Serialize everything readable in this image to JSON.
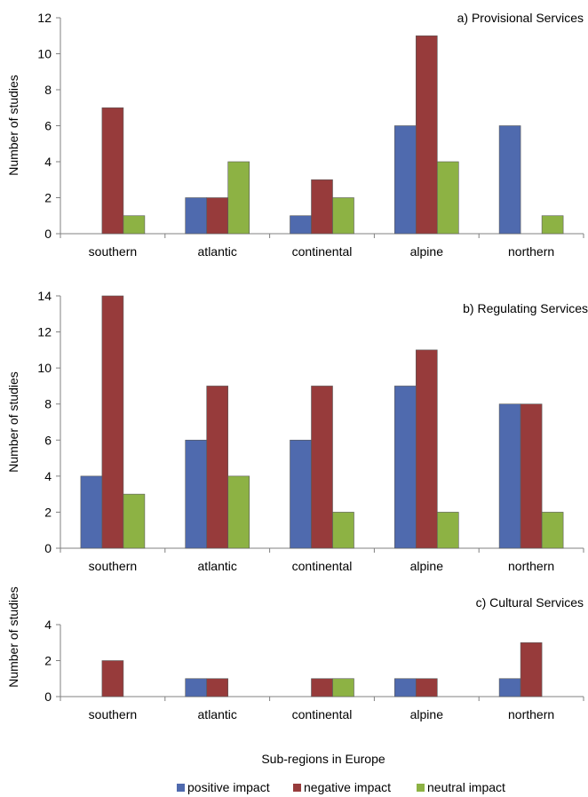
{
  "colors": {
    "positive": "#4F6AAE",
    "negative": "#973B3B",
    "neutral": "#8DB244",
    "bar_outline": "#5a5a5a",
    "axis": "#808080"
  },
  "chart_data": [
    {
      "type": "bar",
      "title": "a) Provisional Services",
      "ylabel": "Number of studies",
      "xlabel": "",
      "ylim": [
        0,
        12
      ],
      "yticks": [
        0,
        2,
        4,
        6,
        8,
        10,
        12
      ],
      "categories": [
        "southern",
        "atlantic",
        "continental",
        "alpine",
        "northern"
      ],
      "series": [
        {
          "name": "positive impact",
          "values": [
            0,
            2,
            1,
            6,
            6
          ]
        },
        {
          "name": "negative impact",
          "values": [
            7,
            2,
            3,
            11,
            0
          ]
        },
        {
          "name": "neutral impact",
          "values": [
            1,
            4,
            2,
            4,
            1
          ]
        }
      ]
    },
    {
      "type": "bar",
      "title": "b) Regulating Services",
      "ylabel": "Number of studies",
      "xlabel": "",
      "ylim": [
        0,
        14
      ],
      "yticks": [
        0,
        2,
        4,
        6,
        8,
        10,
        12,
        14
      ],
      "categories": [
        "southern",
        "atlantic",
        "continental",
        "alpine",
        "northern"
      ],
      "series": [
        {
          "name": "positive impact",
          "values": [
            4,
            6,
            6,
            9,
            8
          ]
        },
        {
          "name": "negative impact",
          "values": [
            14,
            9,
            9,
            11,
            8
          ]
        },
        {
          "name": "neutral impact",
          "values": [
            3,
            4,
            2,
            2,
            2
          ]
        }
      ]
    },
    {
      "type": "bar",
      "title": "c) Cultural Services",
      "ylabel": "Number of studies",
      "xlabel": "Sub-regions in Europe",
      "ylim": [
        0,
        4
      ],
      "yticks": [
        0,
        2,
        4
      ],
      "categories": [
        "southern",
        "atlantic",
        "continental",
        "alpine",
        "northern"
      ],
      "series": [
        {
          "name": "positive impact",
          "values": [
            0,
            1,
            0,
            1,
            1
          ]
        },
        {
          "name": "negative impact",
          "values": [
            2,
            1,
            1,
            1,
            3
          ]
        },
        {
          "name": "neutral impact",
          "values": [
            0,
            0,
            1,
            0,
            0
          ]
        }
      ]
    }
  ],
  "legend": {
    "position": "bottom",
    "items": [
      {
        "label": "positive impact",
        "color_key": "positive"
      },
      {
        "label": "negative impact",
        "color_key": "negative"
      },
      {
        "label": "neutral impact",
        "color_key": "neutral"
      }
    ]
  }
}
